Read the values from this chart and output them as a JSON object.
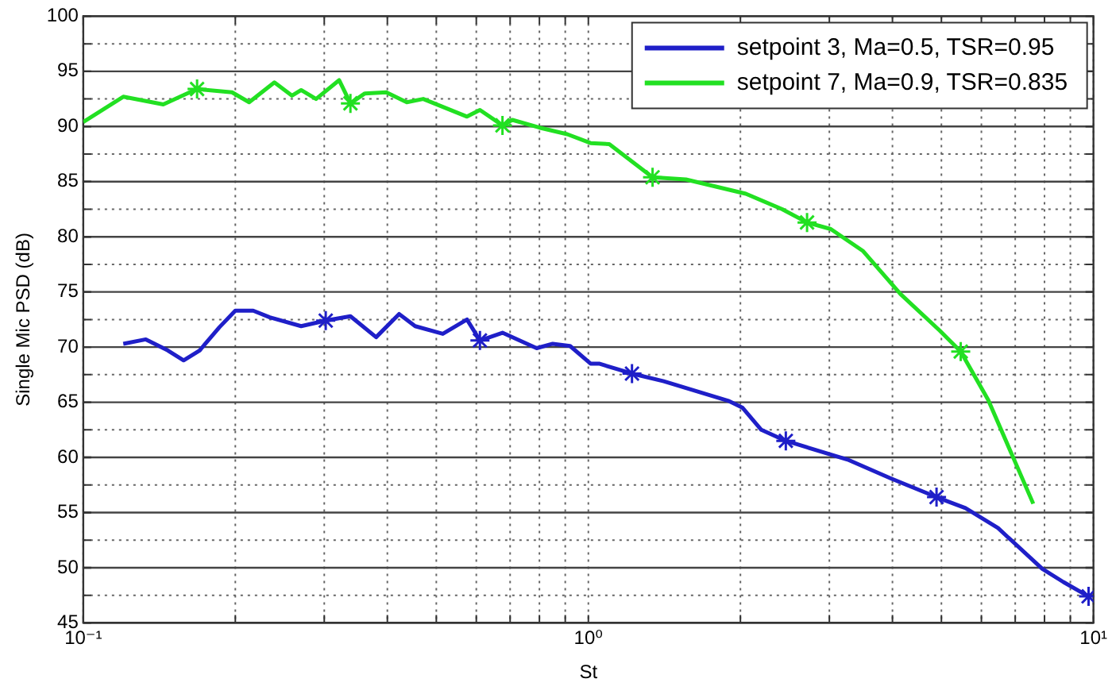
{
  "chart_data": {
    "type": "line",
    "xlabel": "St",
    "ylabel": "Single Mic PSD (dB)",
    "log": "x",
    "grid": true,
    "legend": "top right",
    "line_style": "solid",
    "marker": "none",
    "xlim": [
      0.1,
      10
    ],
    "ylim": [
      45,
      100
    ],
    "xticks": [
      {
        "value": 0.1,
        "label": "10⁻¹"
      },
      {
        "value": 0.2,
        "label": null
      },
      {
        "value": 0.3,
        "label": null
      },
      {
        "value": 0.4,
        "label": null
      },
      {
        "value": 0.5,
        "label": null
      },
      {
        "value": 0.6,
        "label": null
      },
      {
        "value": 0.7,
        "label": null
      },
      {
        "value": 0.8,
        "label": null
      },
      {
        "value": 0.9,
        "label": null
      },
      {
        "value": 1,
        "label": "10⁰"
      },
      {
        "value": 2,
        "label": null
      },
      {
        "value": 3,
        "label": null
      },
      {
        "value": 4,
        "label": null
      },
      {
        "value": 5,
        "label": null
      },
      {
        "value": 6,
        "label": null
      },
      {
        "value": 7,
        "label": null
      },
      {
        "value": 8,
        "label": null
      },
      {
        "value": 9,
        "label": null
      },
      {
        "value": 10,
        "label": "10¹"
      }
    ],
    "yticks": [
      45,
      {
        "value": 47.5,
        "label": null
      },
      50,
      {
        "value": 52.5,
        "label": null
      },
      55,
      {
        "value": 57.5,
        "label": null
      },
      60,
      {
        "value": 62.5,
        "label": null
      },
      65,
      {
        "value": 67.5,
        "label": null
      },
      70,
      {
        "value": 72.5,
        "label": null
      },
      75,
      {
        "value": 77.5,
        "label": null
      },
      80,
      {
        "value": 82.5,
        "label": null
      },
      85,
      {
        "value": 87.5,
        "label": null
      },
      90,
      {
        "value": 92.5,
        "label": null
      },
      95,
      {
        "value": 97.5,
        "label": null
      },
      100
    ],
    "series": [
      {
        "name": "setpoint 3, Ma=0.5, TSR=0.95",
        "color": "#1f1fc8",
        "x": [
          0.12,
          0.133,
          0.147,
          0.158,
          0.17,
          0.186,
          0.2,
          0.217,
          0.234,
          0.27,
          0.302,
          0.338,
          0.38,
          0.422,
          0.454,
          0.515,
          0.575,
          0.61,
          0.676,
          0.79,
          0.85,
          0.92,
          1.01,
          1.05,
          1.22,
          1.41,
          1.9,
          2.02,
          2.2,
          2.46,
          3.26,
          3.97,
          4.89,
          5.58,
          6.47,
          7.92,
          8.72,
          9.78
        ],
        "values": [
          70.3,
          70.7,
          69.7,
          68.8,
          69.7,
          71.8,
          73.3,
          73.3,
          72.7,
          71.9,
          72.4,
          72.8,
          70.9,
          73,
          71.9,
          71.2,
          72.5,
          70.6,
          71.3,
          69.9,
          70.3,
          70.1,
          68.5,
          68.5,
          67.6,
          66.9,
          65.1,
          64.5,
          62.5,
          61.5,
          59.8,
          58.1,
          56.4,
          55.4,
          53.6,
          49.9,
          48.7,
          47.4
        ]
      },
      {
        "name": "setpoint 7, Ma=0.9, TSR=0.835",
        "color": "#22e022",
        "x": [
          0.1,
          0.12,
          0.144,
          0.168,
          0.197,
          0.213,
          0.239,
          0.259,
          0.27,
          0.289,
          0.321,
          0.338,
          0.361,
          0.398,
          0.437,
          0.471,
          0.575,
          0.61,
          0.676,
          0.707,
          0.8,
          0.908,
          1.01,
          1.1,
          1.34,
          1.56,
          2.05,
          2.42,
          2.71,
          3.02,
          3.5,
          4.15,
          4.96,
          5.46,
          6.19,
          7.6
        ],
        "values": [
          90.4,
          92.7,
          92,
          93.4,
          93.1,
          92.2,
          94,
          92.8,
          93.3,
          92.5,
          94.2,
          92.1,
          93,
          93.1,
          92.2,
          92.5,
          90.9,
          91.5,
          90.1,
          90.6,
          89.9,
          89.3,
          88.5,
          88.4,
          85.4,
          85.2,
          83.9,
          82.5,
          81.3,
          80.7,
          78.7,
          74.8,
          71.5,
          69.6,
          65.2,
          55.8
        ]
      },
      {
        "type": "scatter",
        "marker": "cross",
        "color": "#1f1fc8",
        "x": [
          0.302,
          0.61,
          1.22,
          2.46,
          4.89,
          9.78
        ],
        "values": [
          72.4,
          70.6,
          67.6,
          61.5,
          56.4,
          47.4
        ]
      },
      {
        "type": "scatter",
        "marker": "cross",
        "color": "#22e022",
        "x": [
          0.168,
          0.338,
          0.676,
          1.34,
          2.71,
          5.46
        ],
        "values": [
          93.4,
          92.1,
          90.1,
          85.4,
          81.3,
          69.6
        ]
      }
    ]
  }
}
